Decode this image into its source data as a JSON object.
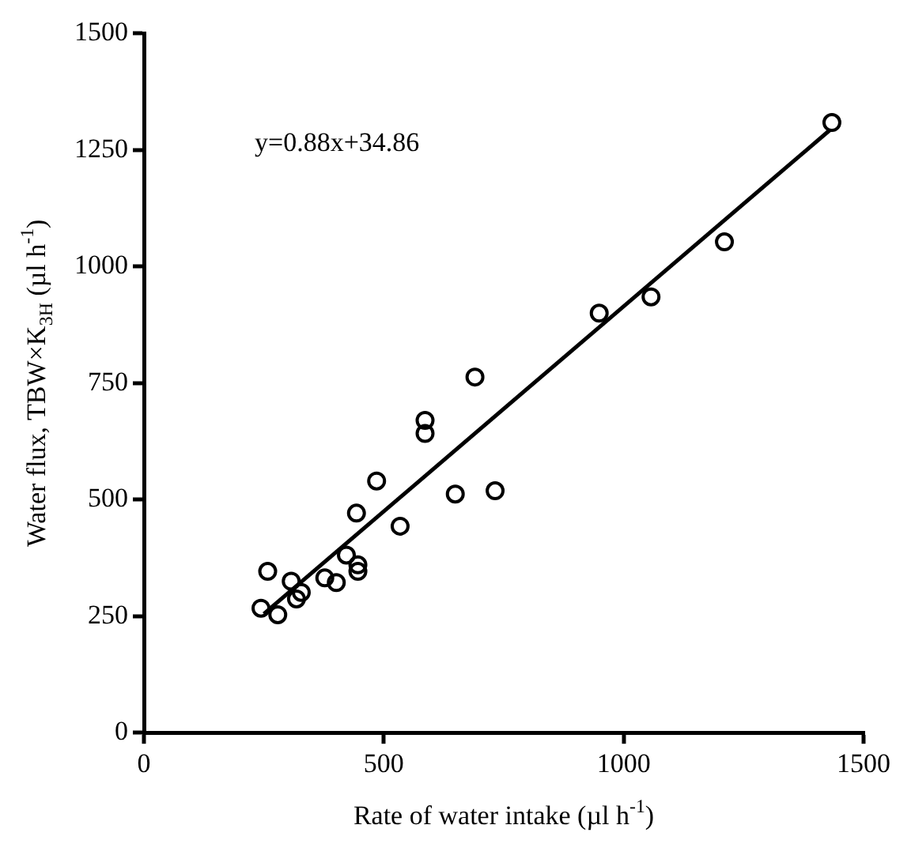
{
  "chart_data": {
    "type": "scatter",
    "xlabel": "Rate of water intake (µl h$^{-1}$)",
    "ylabel": "Water flux, TBW×K$_{3H}$ (µl h$^{-1}$)",
    "annotations": [
      "y=0.88x+34.86"
    ],
    "xlim": [
      0,
      1500
    ],
    "xticks": [
      0,
      500,
      1000,
      1500
    ],
    "ylim": [
      0,
      1500
    ],
    "yticks": [
      0,
      250,
      500,
      750,
      1000,
      1250,
      1500
    ],
    "grid": false,
    "legend": false,
    "marker": "circle",
    "series": [
      {
        "color": "#000000",
        "x": [
          244,
          279,
          258,
          307,
          318,
          328,
          377,
          401,
          422,
          446,
          446,
          443,
          485,
          534,
          586,
          586,
          690,
          649,
          732,
          949,
          1057,
          1210,
          1434
        ],
        "values": [
          267,
          253,
          346,
          325,
          287,
          301,
          332,
          322,
          381,
          360,
          346,
          471,
          540,
          443,
          670,
          642,
          763,
          512,
          519,
          900,
          935,
          1053,
          1309
        ]
      },
      {
        "type": "line",
        "color": "#000000",
        "marker": "none",
        "line_style": "solid",
        "x": [
          250,
          1430
        ],
        "values": [
          255,
          1293
        ]
      }
    ]
  }
}
